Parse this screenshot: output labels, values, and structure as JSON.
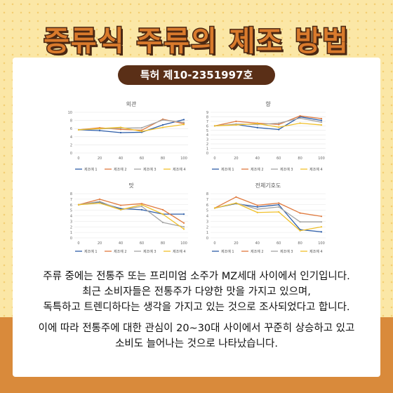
{
  "title": "증류식 주류의 제조 방법",
  "patent_badge": "특허 제10-2351997호",
  "paragraphs": [
    [
      "주류 중에는 전통주 또는 프리미엄 소주가 MZ세대 사이에서 인기입니다.",
      "최근 소비자들은 전통주가 다양한 맛을 가지고 있으며,",
      "독특하고 트렌디하다는 생각을 가지고 있는 것으로 조사되었다고 합니다."
    ],
    [
      "이에 따라 전통주에 대한 관심이 20~30대 사이에서 꾸준히 상승하고 있고",
      "소비도 늘어나는 것으로 나타났습니다."
    ]
  ],
  "colors": {
    "background": "#fbe7a6",
    "ground": "#d98a3b",
    "title_fill": "#d97a2c",
    "title_outline": "#4a2712",
    "badge": "#5a2f17",
    "series": [
      "#2e5ea8",
      "#e07a3e",
      "#a5a5a5",
      "#f0c02b"
    ]
  },
  "chart_data": [
    {
      "type": "line",
      "title": "외관",
      "x": [
        0,
        20,
        40,
        60,
        80,
        100
      ],
      "ylim": [
        0,
        10
      ],
      "yticks": [
        0,
        2,
        4,
        6,
        8,
        10
      ],
      "legend": "bottom",
      "grid": true,
      "series": [
        {
          "name": "제조예 1",
          "values": [
            5.7,
            5.5,
            5.0,
            5.1,
            6.9,
            8.2
          ]
        },
        {
          "name": "제조예 2",
          "values": [
            5.7,
            6.2,
            5.8,
            5.6,
            8.3,
            7.2
          ]
        },
        {
          "name": "제조예 3",
          "values": [
            5.7,
            5.9,
            6.1,
            6.2,
            8.1,
            7.5
          ]
        },
        {
          "name": "제조예 4",
          "values": [
            5.7,
            6.0,
            6.3,
            5.3,
            6.3,
            7.0
          ]
        }
      ]
    },
    {
      "type": "line",
      "title": "향",
      "x": [
        0,
        20,
        40,
        60,
        80,
        100
      ],
      "ylim": [
        0,
        9
      ],
      "yticks": [
        0,
        1,
        2,
        3,
        4,
        5,
        6,
        7,
        8,
        9
      ],
      "legend": "bottom",
      "grid": true,
      "series": [
        {
          "name": "제조예 1",
          "values": [
            6.0,
            6.3,
            5.6,
            5.2,
            8.0,
            7.2
          ]
        },
        {
          "name": "제조예 2",
          "values": [
            6.0,
            7.0,
            6.6,
            6.3,
            8.2,
            7.6
          ]
        },
        {
          "name": "제조예 3",
          "values": [
            6.0,
            6.4,
            6.3,
            6.6,
            7.7,
            6.8
          ]
        },
        {
          "name": "제조예 4",
          "values": [
            6.0,
            6.2,
            6.5,
            5.7,
            6.6,
            6.2
          ]
        }
      ]
    },
    {
      "type": "line",
      "title": "맛",
      "x": [
        0,
        20,
        40,
        60,
        80,
        100
      ],
      "ylim": [
        0,
        8
      ],
      "yticks": [
        0,
        1,
        2,
        3,
        4,
        5,
        6,
        7,
        8
      ],
      "legend": "bottom",
      "grid": true,
      "series": [
        {
          "name": "제조예 1",
          "values": [
            6.0,
            6.4,
            5.3,
            5.1,
            4.3,
            4.3
          ]
        },
        {
          "name": "제조예 2",
          "values": [
            6.0,
            7.0,
            5.9,
            6.2,
            5.1,
            2.7
          ]
        },
        {
          "name": "제조예 3",
          "values": [
            6.0,
            6.6,
            5.1,
            5.7,
            2.8,
            2.0
          ]
        },
        {
          "name": "제조예 4",
          "values": [
            6.0,
            6.3,
            5.1,
            6.0,
            4.3,
            1.6
          ]
        }
      ]
    },
    {
      "type": "line",
      "title": "전체기호도",
      "x": [
        0,
        20,
        40,
        60,
        80,
        100
      ],
      "ylim": [
        0,
        8
      ],
      "yticks": [
        0,
        1,
        2,
        3,
        4,
        5,
        6,
        7,
        8
      ],
      "legend": "bottom",
      "grid": true,
      "series": [
        {
          "name": "제조예 1",
          "values": [
            5.4,
            6.2,
            5.6,
            6.0,
            1.5,
            1.1
          ]
        },
        {
          "name": "제조예 2",
          "values": [
            5.4,
            7.4,
            5.9,
            6.3,
            4.5,
            3.9
          ]
        },
        {
          "name": "제조예 3",
          "values": [
            5.4,
            6.3,
            5.2,
            5.6,
            2.9,
            2.9
          ]
        },
        {
          "name": "제조예 4",
          "values": [
            5.4,
            6.3,
            4.6,
            4.7,
            1.3,
            2.0
          ]
        }
      ]
    }
  ]
}
